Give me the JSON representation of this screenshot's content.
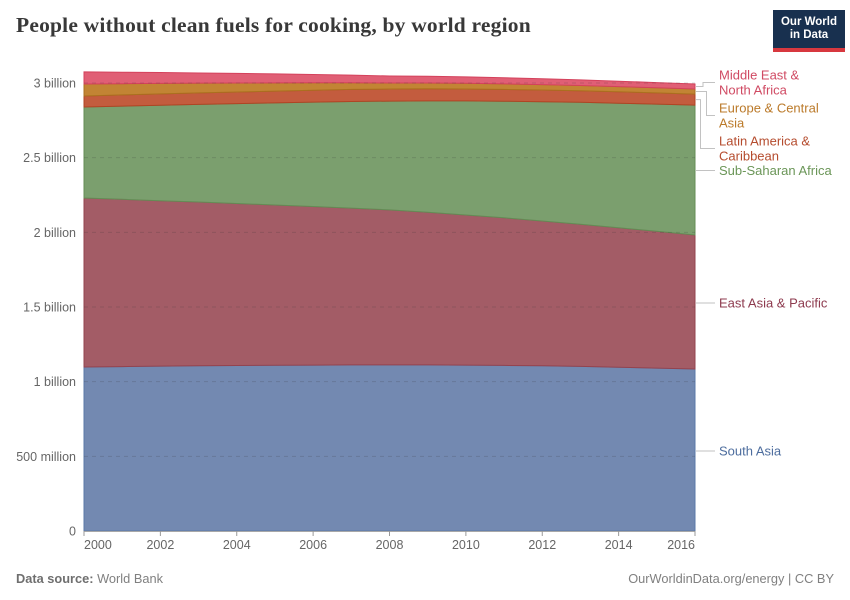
{
  "header": {
    "title": "People without clean fuels for cooking, by world region",
    "logo": {
      "line1": "Our World",
      "line2": "in Data"
    }
  },
  "footer": {
    "source_label": "Data source:",
    "source_value": " World Bank",
    "credit": "OurWorldinData.org/energy | CC BY"
  },
  "colors": {
    "title_text": "#383838",
    "axis_text": "#666666",
    "grid": "rgba(50,50,50,0.18)",
    "axis_line": "#a8a8a8",
    "tick_mark": "#999999",
    "connector": "#c2c2c2",
    "logo_bg": "#18304f",
    "logo_accent": "#d7383f",
    "footer_text": "#808080"
  },
  "chart_data": {
    "type": "area",
    "stacked": true,
    "title": "People without clean fuels for cooking, by world region",
    "unit": "people (billions)",
    "x": [
      2000,
      2001,
      2002,
      2003,
      2004,
      2005,
      2006,
      2007,
      2008,
      2009,
      2010,
      2011,
      2012,
      2013,
      2014,
      2015,
      2016
    ],
    "xticks": [
      2000,
      2002,
      2004,
      2006,
      2008,
      2010,
      2012,
      2014,
      2016
    ],
    "yticks": [
      {
        "value": 0,
        "label": "0"
      },
      {
        "value": 0.5,
        "label": "500 million"
      },
      {
        "value": 1,
        "label": "1 billion"
      },
      {
        "value": 1.5,
        "label": "1.5 billion"
      },
      {
        "value": 2,
        "label": "2 billion"
      },
      {
        "value": 2.5,
        "label": "2.5 billion"
      },
      {
        "value": 3,
        "label": "3 billion"
      }
    ],
    "ylim": [
      0,
      3.12
    ],
    "grid": "dashed",
    "legend_position": "right",
    "series": [
      {
        "key": "south-asia",
        "label": "South Asia",
        "label_lines": [
          "South Asia"
        ],
        "fill": "#7389b1",
        "stroke": "#5b79a8",
        "label_color": "#4d6d9e",
        "values": [
          1.098,
          1.101,
          1.104,
          1.106,
          1.108,
          1.11,
          1.111,
          1.112,
          1.112,
          1.112,
          1.111,
          1.109,
          1.106,
          1.102,
          1.097,
          1.091,
          1.085
        ]
      },
      {
        "key": "east-asia-pacific",
        "label": "East Asia & Pacific",
        "label_lines": [
          "East Asia & Pacific"
        ],
        "fill": "#a35c66",
        "stroke": "#93434f",
        "label_color": "#8d3a4e",
        "values": [
          1.132,
          1.12,
          1.108,
          1.097,
          1.085,
          1.073,
          1.062,
          1.05,
          1.038,
          1.022,
          1.005,
          0.988,
          0.97,
          0.952,
          0.934,
          0.916,
          0.897
        ]
      },
      {
        "key": "sub-saharan-africa",
        "label": "Sub-Saharan Africa",
        "label_lines": [
          "Sub-Saharan Africa"
        ],
        "fill": "#7b9f6e",
        "stroke": "#648c55",
        "label_color": "#6b9658",
        "values": [
          0.609,
          0.624,
          0.639,
          0.654,
          0.669,
          0.684,
          0.699,
          0.714,
          0.729,
          0.746,
          0.764,
          0.781,
          0.799,
          0.817,
          0.834,
          0.852,
          0.87
        ]
      },
      {
        "key": "latin-america-caribbean",
        "label": "Latin America & Caribbean",
        "label_lines": [
          "Latin America &",
          "Caribbean"
        ],
        "fill": "#c35c3e",
        "stroke": "#b04424",
        "label_color": "#b54c2e",
        "values": [
          0.074,
          0.075,
          0.076,
          0.077,
          0.078,
          0.079,
          0.08,
          0.081,
          0.081,
          0.081,
          0.08,
          0.079,
          0.078,
          0.077,
          0.076,
          0.075,
          0.074
        ]
      },
      {
        "key": "europe-central-asia",
        "label": "Europe & Central Asia",
        "label_lines": [
          "Europe & Central",
          "Asia"
        ],
        "fill": "#c28434",
        "stroke": "#ab701f",
        "label_color": "#bb7a2a",
        "values": [
          0.08,
          0.075,
          0.07,
          0.065,
          0.06,
          0.055,
          0.05,
          0.045,
          0.04,
          0.039,
          0.038,
          0.037,
          0.036,
          0.035,
          0.035,
          0.034,
          0.034
        ]
      },
      {
        "key": "middle-east-north-africa",
        "label": "Middle East & North Africa",
        "label_lines": [
          "Middle East &",
          "North Africa"
        ],
        "fill": "#e05f75",
        "stroke": "#d4425c",
        "label_color": "#d04a63",
        "values": [
          0.081,
          0.077,
          0.073,
          0.068,
          0.064,
          0.06,
          0.055,
          0.051,
          0.047,
          0.045,
          0.043,
          0.041,
          0.04,
          0.038,
          0.036,
          0.035,
          0.033
        ]
      }
    ]
  }
}
